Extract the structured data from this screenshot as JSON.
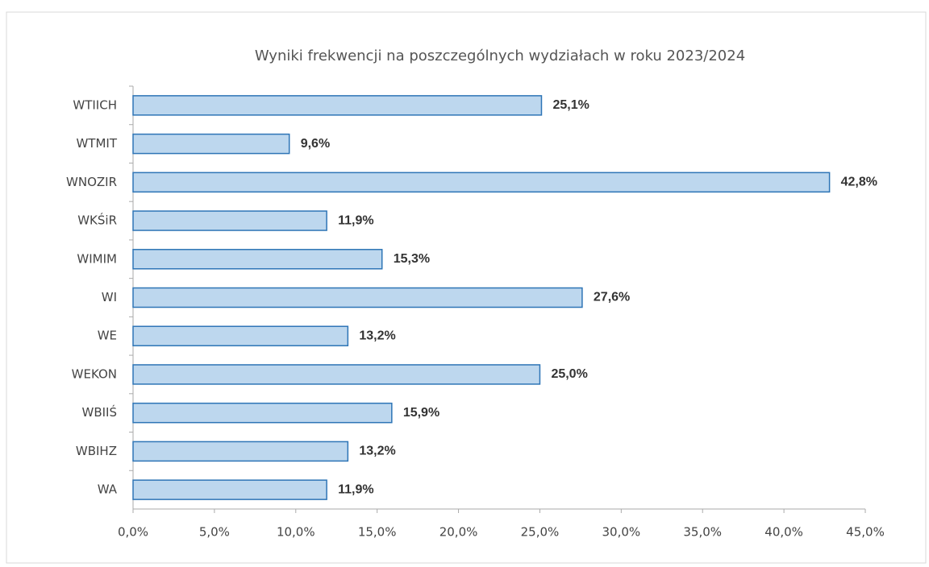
{
  "chart_data": {
    "type": "hbar",
    "title": "Wyniki frekwencji na poszczególnych wydziałach w roku 2023/2024",
    "categories": [
      "WTIICH",
      "WTMIT",
      "WNOZIR",
      "WKŚiR",
      "WIMIM",
      "WI",
      "WE",
      "WEKON",
      "WBIIŚ",
      "WBIHZ",
      "WA"
    ],
    "values": [
      25.1,
      9.6,
      42.8,
      11.9,
      15.3,
      27.6,
      13.2,
      25.0,
      15.9,
      13.2,
      11.9
    ],
    "value_labels": [
      "25,1%",
      "9,6%",
      "42,8%",
      "11,9%",
      "15,3%",
      "27,6%",
      "13,2%",
      "25,0%",
      "15,9%",
      "13,2%",
      "11,9%"
    ],
    "color": "#bdd7ee",
    "edge_color": "#2e75b6",
    "xlim": [
      0,
      45
    ],
    "xticks": [
      {
        "value": 0,
        "label": "0,0%"
      },
      {
        "value": 5,
        "label": "5,0%"
      },
      {
        "value": 10,
        "label": "10,0%"
      },
      {
        "value": 15,
        "label": "15,0%"
      },
      {
        "value": 20,
        "label": "20,0%"
      },
      {
        "value": 25,
        "label": "25,0%"
      },
      {
        "value": 30,
        "label": "30,0%"
      },
      {
        "value": 35,
        "label": "35,0%"
      },
      {
        "value": 40,
        "label": "40,0%"
      },
      {
        "value": 45,
        "label": "45,0%"
      }
    ]
  }
}
